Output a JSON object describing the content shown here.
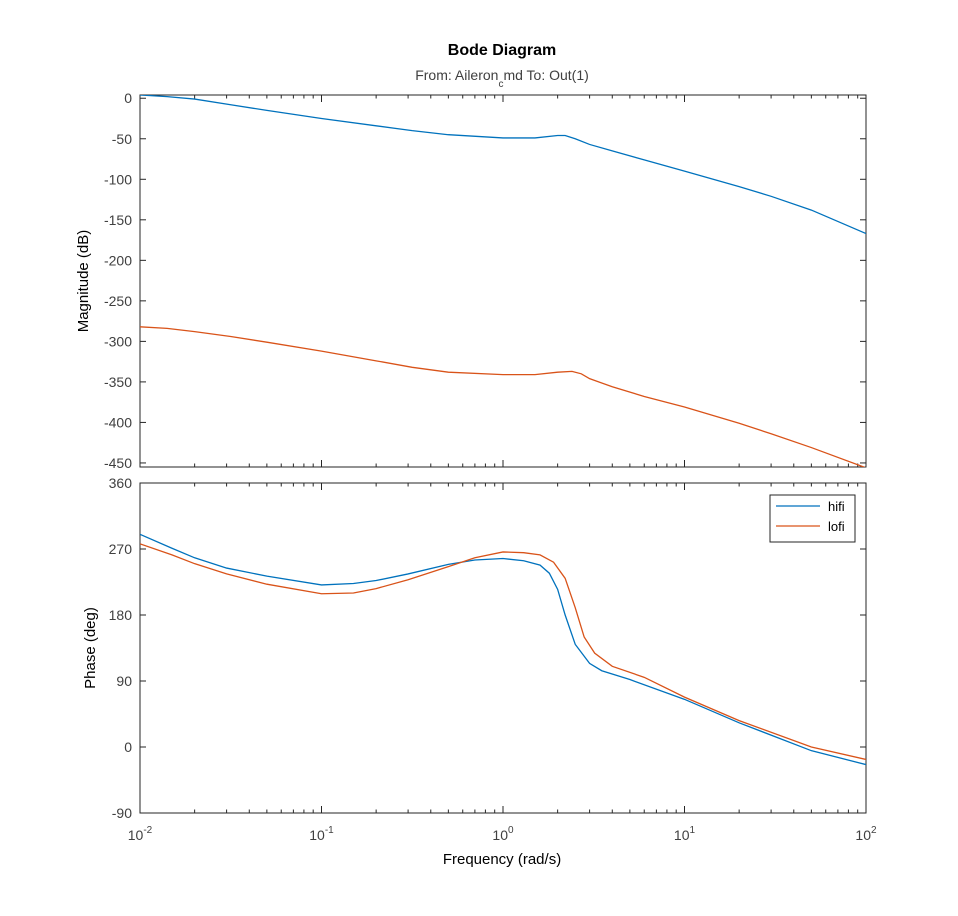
{
  "chart": {
    "title": "Bode Diagram",
    "subtitle_prefix": "From: Aileron",
    "subtitle_subscript": "c",
    "subtitle_suffix": "md  To: Out(1)",
    "xlabel": "Frequency  (rad/s)",
    "x_tick_base": "10",
    "x_tick_exponents": [
      "-2",
      "-1",
      "0",
      "1",
      "2"
    ]
  },
  "chart_data": [
    {
      "type": "line",
      "name": "magnitude",
      "xscale": "log",
      "xlim": [
        0.01,
        100
      ],
      "ylim": [
        -455,
        4
      ],
      "ylabel": "Magnitude (dB)",
      "yticks": [
        0,
        -50,
        -100,
        -150,
        -200,
        -250,
        -300,
        -350,
        -400,
        -450
      ],
      "grid": false,
      "series": [
        {
          "color": "#0072BD",
          "points": [
            [
              0.01,
              4
            ],
            [
              0.0141,
              2
            ],
            [
              0.02,
              -1
            ],
            [
              0.0316,
              -8
            ],
            [
              0.05,
              -15
            ],
            [
              0.1,
              -25
            ],
            [
              0.2,
              -34
            ],
            [
              0.316,
              -40
            ],
            [
              0.5,
              -45
            ],
            [
              1.0,
              -49
            ],
            [
              1.5,
              -49
            ],
            [
              2.0,
              -46
            ],
            [
              2.2,
              -46
            ],
            [
              2.5,
              -50
            ],
            [
              3.0,
              -57
            ],
            [
              4.0,
              -65
            ],
            [
              6.0,
              -76
            ],
            [
              10,
              -90
            ],
            [
              20,
              -109
            ],
            [
              30,
              -121
            ],
            [
              50,
              -138
            ],
            [
              100,
              -167
            ]
          ]
        },
        {
          "color": "#D95319",
          "points": [
            [
              0.01,
              -282
            ],
            [
              0.0141,
              -284
            ],
            [
              0.02,
              -288
            ],
            [
              0.0316,
              -294
            ],
            [
              0.05,
              -301
            ],
            [
              0.1,
              -312
            ],
            [
              0.2,
              -324
            ],
            [
              0.316,
              -332
            ],
            [
              0.5,
              -338
            ],
            [
              1.0,
              -341
            ],
            [
              1.5,
              -341
            ],
            [
              2.0,
              -338
            ],
            [
              2.4,
              -337
            ],
            [
              2.7,
              -340
            ],
            [
              3.0,
              -346
            ],
            [
              4.0,
              -356
            ],
            [
              6.0,
              -368
            ],
            [
              10,
              -381
            ],
            [
              20,
              -401
            ],
            [
              30,
              -414
            ],
            [
              50,
              -431
            ],
            [
              100,
              -456
            ]
          ]
        }
      ]
    },
    {
      "type": "line",
      "name": "phase",
      "xscale": "log",
      "xlim": [
        0.01,
        100
      ],
      "ylim": [
        -90,
        360
      ],
      "ylabel": "Phase (deg)",
      "yticks": [
        360,
        270,
        180,
        90,
        0,
        -90
      ],
      "grid": false,
      "legend_position": "top-right",
      "series": [
        {
          "name": "hifi",
          "color": "#0072BD",
          "points": [
            [
              0.01,
              290
            ],
            [
              0.015,
              271
            ],
            [
              0.02,
              258
            ],
            [
              0.03,
              244
            ],
            [
              0.05,
              233
            ],
            [
              0.1,
              221
            ],
            [
              0.15,
              223
            ],
            [
              0.2,
              227
            ],
            [
              0.3,
              236
            ],
            [
              0.5,
              249
            ],
            [
              0.7,
              255
            ],
            [
              1.0,
              257
            ],
            [
              1.3,
              254
            ],
            [
              1.6,
              248
            ],
            [
              1.8,
              237
            ],
            [
              2.0,
              215
            ],
            [
              2.2,
              180
            ],
            [
              2.5,
              140
            ],
            [
              3.0,
              114
            ],
            [
              3.5,
              104
            ],
            [
              5.0,
              92
            ],
            [
              10,
              65
            ],
            [
              20,
              33
            ],
            [
              50,
              -5
            ],
            [
              100,
              -24
            ]
          ]
        },
        {
          "name": "lofi",
          "color": "#D95319",
          "points": [
            [
              0.01,
              277
            ],
            [
              0.015,
              262
            ],
            [
              0.02,
              250
            ],
            [
              0.03,
              236
            ],
            [
              0.05,
              222
            ],
            [
              0.1,
              209
            ],
            [
              0.15,
              210
            ],
            [
              0.2,
              216
            ],
            [
              0.3,
              228
            ],
            [
              0.5,
              246
            ],
            [
              0.7,
              258
            ],
            [
              1.0,
              266
            ],
            [
              1.3,
              265
            ],
            [
              1.6,
              262
            ],
            [
              1.9,
              252
            ],
            [
              2.2,
              230
            ],
            [
              2.5,
              190
            ],
            [
              2.8,
              150
            ],
            [
              3.2,
              128
            ],
            [
              4.0,
              110
            ],
            [
              6.0,
              95
            ],
            [
              10,
              68
            ],
            [
              20,
              36
            ],
            [
              50,
              0
            ],
            [
              100,
              -17
            ]
          ]
        }
      ]
    }
  ]
}
